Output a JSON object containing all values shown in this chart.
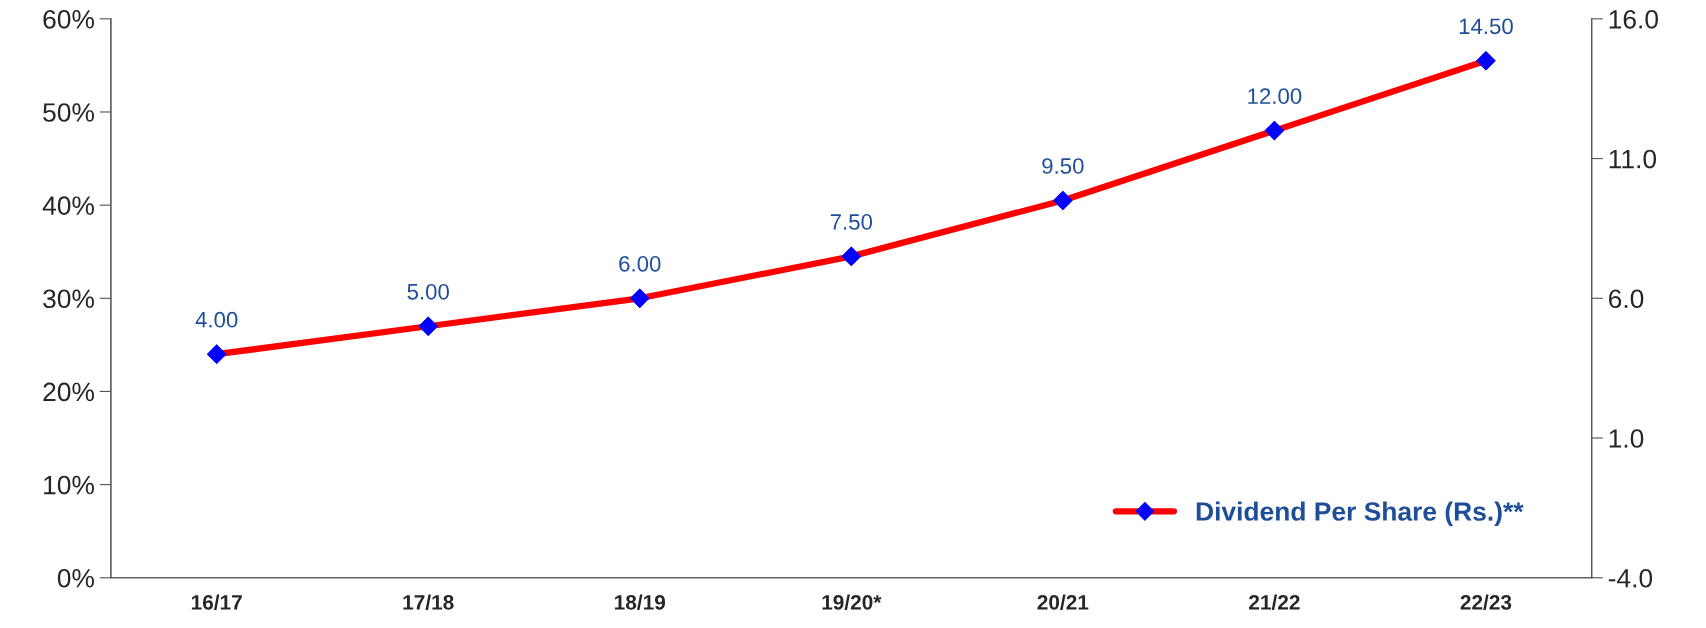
{
  "chart_data": {
    "type": "line",
    "categories": [
      "16/17",
      "17/18",
      "18/19",
      "19/20*",
      "20/21",
      "21/22",
      "22/23"
    ],
    "ylim": [
      0,
      0.6
    ],
    "yticks": [
      {
        "value": 0,
        "label": "0%"
      },
      {
        "value": 0.1,
        "label": "10%"
      },
      {
        "value": 0.2,
        "label": "20%"
      },
      {
        "value": 0.3,
        "label": "30%"
      },
      {
        "value": 0.4,
        "label": "40%"
      },
      {
        "value": 0.5,
        "label": "50%"
      },
      {
        "value": 0.6,
        "label": "60%"
      }
    ],
    "y2lim": [
      -4,
      16
    ],
    "y2ticks": [
      {
        "value": -4,
        "label": "-4.0"
      },
      {
        "value": 1,
        "label": "1.0"
      },
      {
        "value": 6,
        "label": "6.0"
      },
      {
        "value": 11,
        "label": "11.0"
      },
      {
        "value": 16,
        "label": "16.0"
      }
    ],
    "series": [
      {
        "name": "Dividend Per Share (Rs.)**",
        "color": "#ff0000",
        "axis": "y2",
        "marker": "diamond",
        "colors": [
          "#0000ff",
          "#0000ff",
          "#0000ff",
          "#0000ff",
          "#0000ff",
          "#0000ff",
          "#0000ff"
        ],
        "values": [
          4,
          5,
          6,
          7.5,
          9.5,
          12,
          14.5
        ],
        "value_labels": [
          "4.00",
          "5.00",
          "6.00",
          "7.50",
          "9.50",
          "12.00",
          "14.50"
        ]
      }
    ],
    "grid": false,
    "legend": "bottom right"
  }
}
